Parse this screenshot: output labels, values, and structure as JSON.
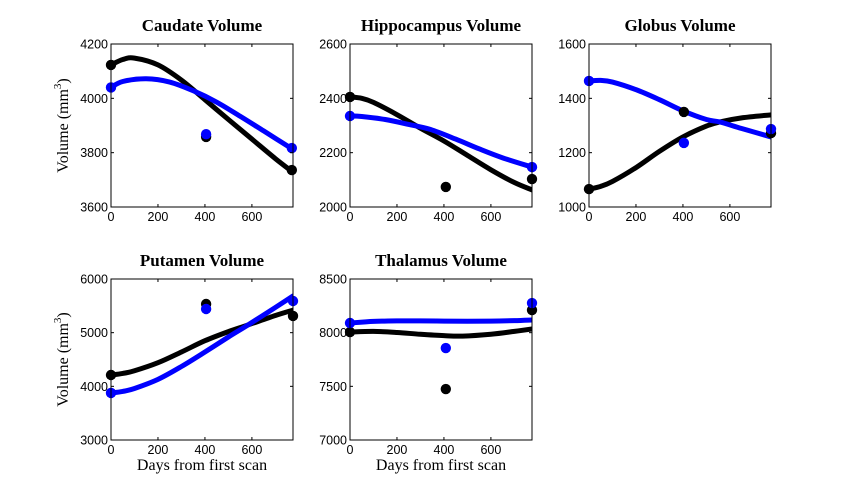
{
  "figure": {
    "background": "#ffffff",
    "series_colors": {
      "black": "#000000",
      "blue": "#0000ff"
    }
  },
  "chart_data": [
    {
      "type": "line",
      "title": "Caudate Volume",
      "xlabel": "",
      "ylabel": "Volume (mm3)",
      "ylabel_main": "Volume (mm",
      "ylabel_sup": "3",
      "ylabel_close": ")",
      "xlim": [
        0,
        775
      ],
      "ylim": [
        3600,
        4200
      ],
      "xticks": [
        0,
        200,
        400,
        600
      ],
      "yticks": [
        3600,
        3800,
        4000,
        4200
      ],
      "grid": false,
      "series": [
        {
          "name": "black",
          "color": "#000000",
          "points": {
            "x": [
              0,
              405,
              770
            ],
            "y": [
              4123,
              3858,
              3736
            ]
          },
          "fit": {
            "x": [
              0,
              50,
              100,
              200,
              300,
              400,
              500,
              600,
              700,
              775
            ],
            "y": [
              4123,
              4143,
              4148,
              4123,
              4067,
              3995,
              3922,
              3850,
              3778,
              3728
            ]
          }
        },
        {
          "name": "blue",
          "color": "#0000ff",
          "points": {
            "x": [
              0,
              405,
              770
            ],
            "y": [
              4040,
              3868,
              3817
            ]
          },
          "fit": {
            "x": [
              0,
              50,
              150,
              250,
              350,
              450,
              550,
              650,
              775
            ],
            "y": [
              4040,
              4062,
              4072,
              4060,
              4028,
              3986,
              3934,
              3880,
              3812
            ]
          }
        }
      ]
    },
    {
      "type": "line",
      "title": "Hippocampus Volume",
      "xlabel": "",
      "ylabel": "",
      "xlim": [
        0,
        775
      ],
      "ylim": [
        2000,
        2600
      ],
      "xticks": [
        0,
        200,
        400,
        600
      ],
      "yticks": [
        2000,
        2200,
        2400,
        2600
      ],
      "grid": false,
      "series": [
        {
          "name": "black",
          "color": "#000000",
          "points": {
            "x": [
              0,
              408,
              775
            ],
            "y": [
              2405,
              2074,
              2103
            ]
          },
          "fit": {
            "x": [
              0,
              50,
              100,
              200,
              300,
              400,
              500,
              600,
              700,
              775
            ],
            "y": [
              2405,
              2400,
              2385,
              2340,
              2290,
              2243,
              2190,
              2137,
              2090,
              2063
            ]
          }
        },
        {
          "name": "blue",
          "color": "#0000ff",
          "points": {
            "x": [
              0,
              775
            ],
            "y": [
              2335,
              2147
            ]
          },
          "fit": {
            "x": [
              0,
              50,
              150,
              250,
              340,
              450,
              550,
              650,
              775
            ],
            "y": [
              2335,
              2333,
              2322,
              2304,
              2286,
              2250,
              2214,
              2181,
              2147
            ]
          }
        }
      ]
    },
    {
      "type": "line",
      "title": "Globus Volume",
      "xlabel": "",
      "ylabel": "",
      "xlim": [
        0,
        775
      ],
      "ylim": [
        1000,
        1600
      ],
      "xticks": [
        0,
        200,
        400,
        600
      ],
      "yticks": [
        1000,
        1200,
        1400,
        1600
      ],
      "grid": false,
      "series": [
        {
          "name": "black",
          "color": "#000000",
          "points": {
            "x": [
              0,
              404,
              775
            ],
            "y": [
              1066,
              1350,
              1272
            ]
          },
          "fit": {
            "x": [
              0,
              50,
              100,
              200,
              300,
              400,
              500,
              557,
              650,
              775
            ],
            "y": [
              1066,
              1076,
              1094,
              1145,
              1205,
              1258,
              1298,
              1313,
              1328,
              1339
            ]
          }
        },
        {
          "name": "blue",
          "color": "#0000ff",
          "points": {
            "x": [
              0,
              404,
              775
            ],
            "y": [
              1464,
              1236,
              1287
            ]
          },
          "fit": {
            "x": [
              0,
              50,
              100,
              200,
              300,
              400,
              500,
              557,
              650,
              775
            ],
            "y": [
              1464,
              1466,
              1460,
              1432,
              1395,
              1354,
              1322,
              1313,
              1289,
              1258
            ]
          }
        }
      ]
    },
    {
      "type": "line",
      "title": "Putamen Volume",
      "xlabel": "Days from first scan",
      "ylabel": "Volume (mm3)",
      "ylabel_main": "Volume (mm",
      "ylabel_sup": "3",
      "ylabel_close": ")",
      "xlim": [
        0,
        775
      ],
      "ylim": [
        3000,
        6000
      ],
      "xticks": [
        0,
        200,
        400,
        600
      ],
      "yticks": [
        3000,
        4000,
        5000,
        6000
      ],
      "grid": false,
      "series": [
        {
          "name": "black",
          "color": "#000000",
          "points": {
            "x": [
              0,
              405,
              775
            ],
            "y": [
              4211,
              5534,
              5311
            ]
          },
          "fit": {
            "x": [
              0,
              50,
              100,
              200,
              300,
              400,
              500,
              583,
              700,
              775
            ],
            "y": [
              4211,
              4240,
              4290,
              4440,
              4640,
              4850,
              5020,
              5143,
              5320,
              5420
            ]
          }
        },
        {
          "name": "blue",
          "color": "#0000ff",
          "points": {
            "x": [
              0,
              405,
              775
            ],
            "y": [
              3876,
              5441,
              5590
            ]
          },
          "fit": {
            "x": [
              0,
              50,
              100,
              200,
              300,
              400,
              500,
              583,
              700,
              775
            ],
            "y": [
              3876,
              3905,
              3960,
              4130,
              4370,
              4640,
              4920,
              5143,
              5470,
              5683
            ]
          }
        }
      ]
    },
    {
      "type": "line",
      "title": "Thalamus Volume",
      "xlabel": "Days from first scan",
      "ylabel": "",
      "xlim": [
        0,
        775
      ],
      "ylim": [
        7000,
        8500
      ],
      "xticks": [
        0,
        200,
        400,
        600
      ],
      "yticks": [
        7000,
        7500,
        8000,
        8500
      ],
      "grid": false,
      "series": [
        {
          "name": "black",
          "color": "#000000",
          "points": {
            "x": [
              0,
              408,
              775
            ],
            "y": [
              8006,
              7475,
              8211
            ]
          },
          "fit": {
            "x": [
              0,
              100,
              200,
              300,
              400,
              480,
              600,
              700,
              775
            ],
            "y": [
              8006,
              8012,
              8002,
              7985,
              7972,
              7968,
              7985,
              8012,
              8034
            ]
          }
        },
        {
          "name": "blue",
          "color": "#0000ff",
          "points": {
            "x": [
              0,
              408,
              775
            ],
            "y": [
              8090,
              7857,
              8276
            ]
          },
          "fit": {
            "x": [
              0,
              100,
              200,
              300,
              400,
              500,
              600,
              700,
              775
            ],
            "y": [
              8090,
              8105,
              8110,
              8110,
              8108,
              8106,
              8108,
              8112,
              8118
            ]
          }
        }
      ]
    }
  ]
}
